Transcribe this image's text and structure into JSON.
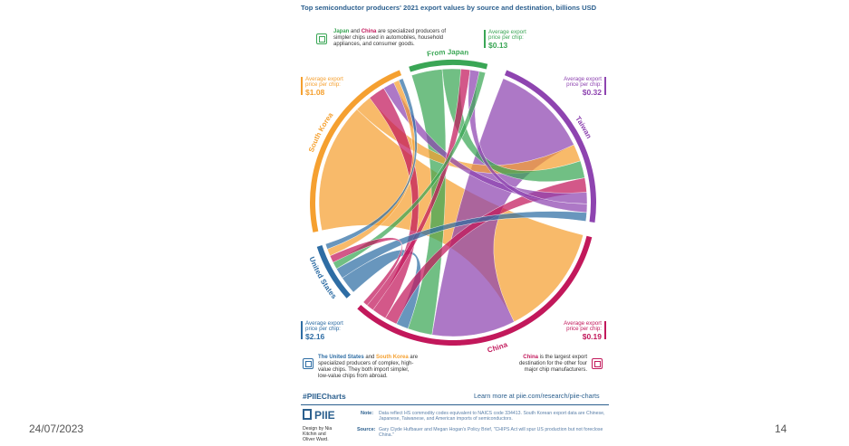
{
  "slide": {
    "date": "24/07/2023",
    "page_number": "14"
  },
  "chart_data": {
    "type": "chord",
    "title": "Top semiconductor producers' 2021 export values by source and destination, billions USD",
    "groups": [
      {
        "name": "From Japan",
        "color": "#3aa655",
        "avg_price_label": "Average export price per chip:",
        "avg_price": "$0.13"
      },
      {
        "name": "Taiwan",
        "color": "#8e44b0",
        "avg_price_label": "Average export price per chip:",
        "avg_price": "$0.32"
      },
      {
        "name": "China",
        "color": "#c2185b",
        "avg_price_label": "Average export price per chip:",
        "avg_price": "$0.19"
      },
      {
        "name": "United States",
        "color": "#2e6da4",
        "avg_price_label": "Average export price per chip:",
        "avg_price": "$2.16"
      },
      {
        "name": "South Korea",
        "color": "#f5a030",
        "avg_price_label": "Average export price per chip:",
        "avg_price": "$1.08"
      }
    ],
    "flows": [
      {
        "source": "South Korea",
        "target": "China",
        "value": 46.0
      },
      {
        "source": "Taiwan",
        "target": "China",
        "value": 34.0
      },
      {
        "source": "Japan",
        "target": "China",
        "value": 10.0
      },
      {
        "source": "United States",
        "target": "China",
        "value": 5.0
      },
      {
        "source": "South Korea",
        "target": "Taiwan",
        "value": 6.0
      },
      {
        "source": "Japan",
        "target": "Taiwan",
        "value": 6.0
      },
      {
        "source": "China",
        "target": "Taiwan",
        "value": 5.0
      },
      {
        "source": "China",
        "target": "South Korea",
        "value": 6.0
      },
      {
        "source": "Taiwan",
        "target": "South Korea",
        "value": 4.0
      },
      {
        "source": "China",
        "target": "Japan",
        "value": 3.0
      },
      {
        "source": "Taiwan",
        "target": "Japan",
        "value": 3.0
      },
      {
        "source": "United States",
        "target": "Taiwan",
        "value": 3.0
      },
      {
        "source": "Japan",
        "target": "United States",
        "value": 2.0
      },
      {
        "source": "China",
        "target": "United States",
        "value": 2.0
      },
      {
        "source": "South Korea",
        "target": "United States",
        "value": 2.0
      },
      {
        "source": "United States",
        "target": "South Korea",
        "value": 1.5
      }
    ]
  },
  "notes": {
    "japan_china": {
      "c1": "Japan",
      "t1": " and ",
      "c2": "China",
      "t2": " are specialized producers of simpler chips used in automobiles, household appliances, and consumer goods."
    },
    "us_korea": {
      "c1": "The United States",
      "t1": " and ",
      "c2": "South Korea",
      "t2": " are specialized producers of complex, high-value chips. They both import simpler, low-value chips from abroad."
    },
    "china": {
      "c1": "China",
      "t1": " is the largest export destination for the other four major chip manufacturers."
    }
  },
  "footer": {
    "hashtag": "#PIIECharts",
    "learn_more": "Learn more at piie.com/research/piie-charts",
    "logo": "PIIE",
    "credit": "Design by Nia Kitchin and Oliver Ward.",
    "note_label": "Note:",
    "note_text": "Data reflect HS commodity codes equivalent to NAICS code 334413. South Korean export data are Chinese, Japanese, Taiwanese, and American imports of semiconductors.",
    "source_label": "Source:",
    "source_text": "Gary Clyde Hufbauer and Megan Hogan's Policy Brief, \"CHIPS Act will spur US production but not foreclose China.\""
  }
}
